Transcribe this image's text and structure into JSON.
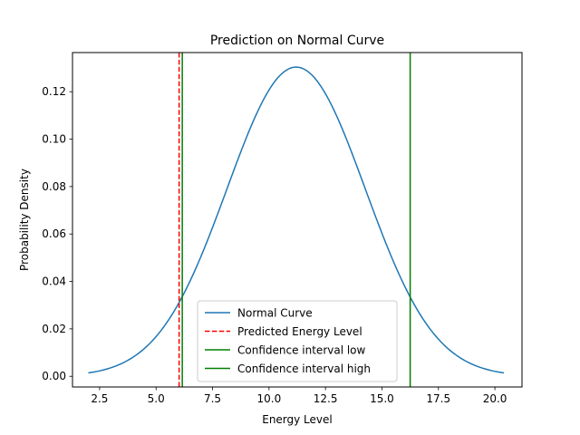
{
  "chart_data": {
    "type": "line",
    "title": "Prediction on Normal Curve",
    "xlabel": "Energy Level",
    "ylabel": "Probability Density",
    "xlim": [
      1.3,
      21.2
    ],
    "ylim": [
      -0.0045,
      0.1365
    ],
    "xticks": [
      2.5,
      5.0,
      7.5,
      10.0,
      12.5,
      15.0,
      17.5,
      20.0
    ],
    "xtick_labels": [
      "2.5",
      "5.0",
      "7.5",
      "10.0",
      "12.5",
      "15.0",
      "17.5",
      "20.0"
    ],
    "yticks": [
      0.0,
      0.02,
      0.04,
      0.06,
      0.08,
      0.1,
      0.12
    ],
    "ytick_labels": [
      "0.00",
      "0.02",
      "0.04",
      "0.06",
      "0.08",
      "0.10",
      "0.12"
    ],
    "grid": false,
    "legend_position": "lower-center",
    "curve": {
      "name": "Normal Curve",
      "color": "#1f77b4",
      "mean": 11.2,
      "std": 3.06,
      "x_min": 2.0,
      "x_max": 20.4
    },
    "vlines": [
      {
        "name": "Predicted Energy Level",
        "x": 6.02,
        "color": "#ff0000",
        "style": "dashed"
      },
      {
        "name": "Confidence interval low",
        "x": 6.16,
        "color": "#008000",
        "style": "solid"
      },
      {
        "name": "Confidence interval high",
        "x": 16.25,
        "color": "#008000",
        "style": "solid"
      }
    ]
  }
}
